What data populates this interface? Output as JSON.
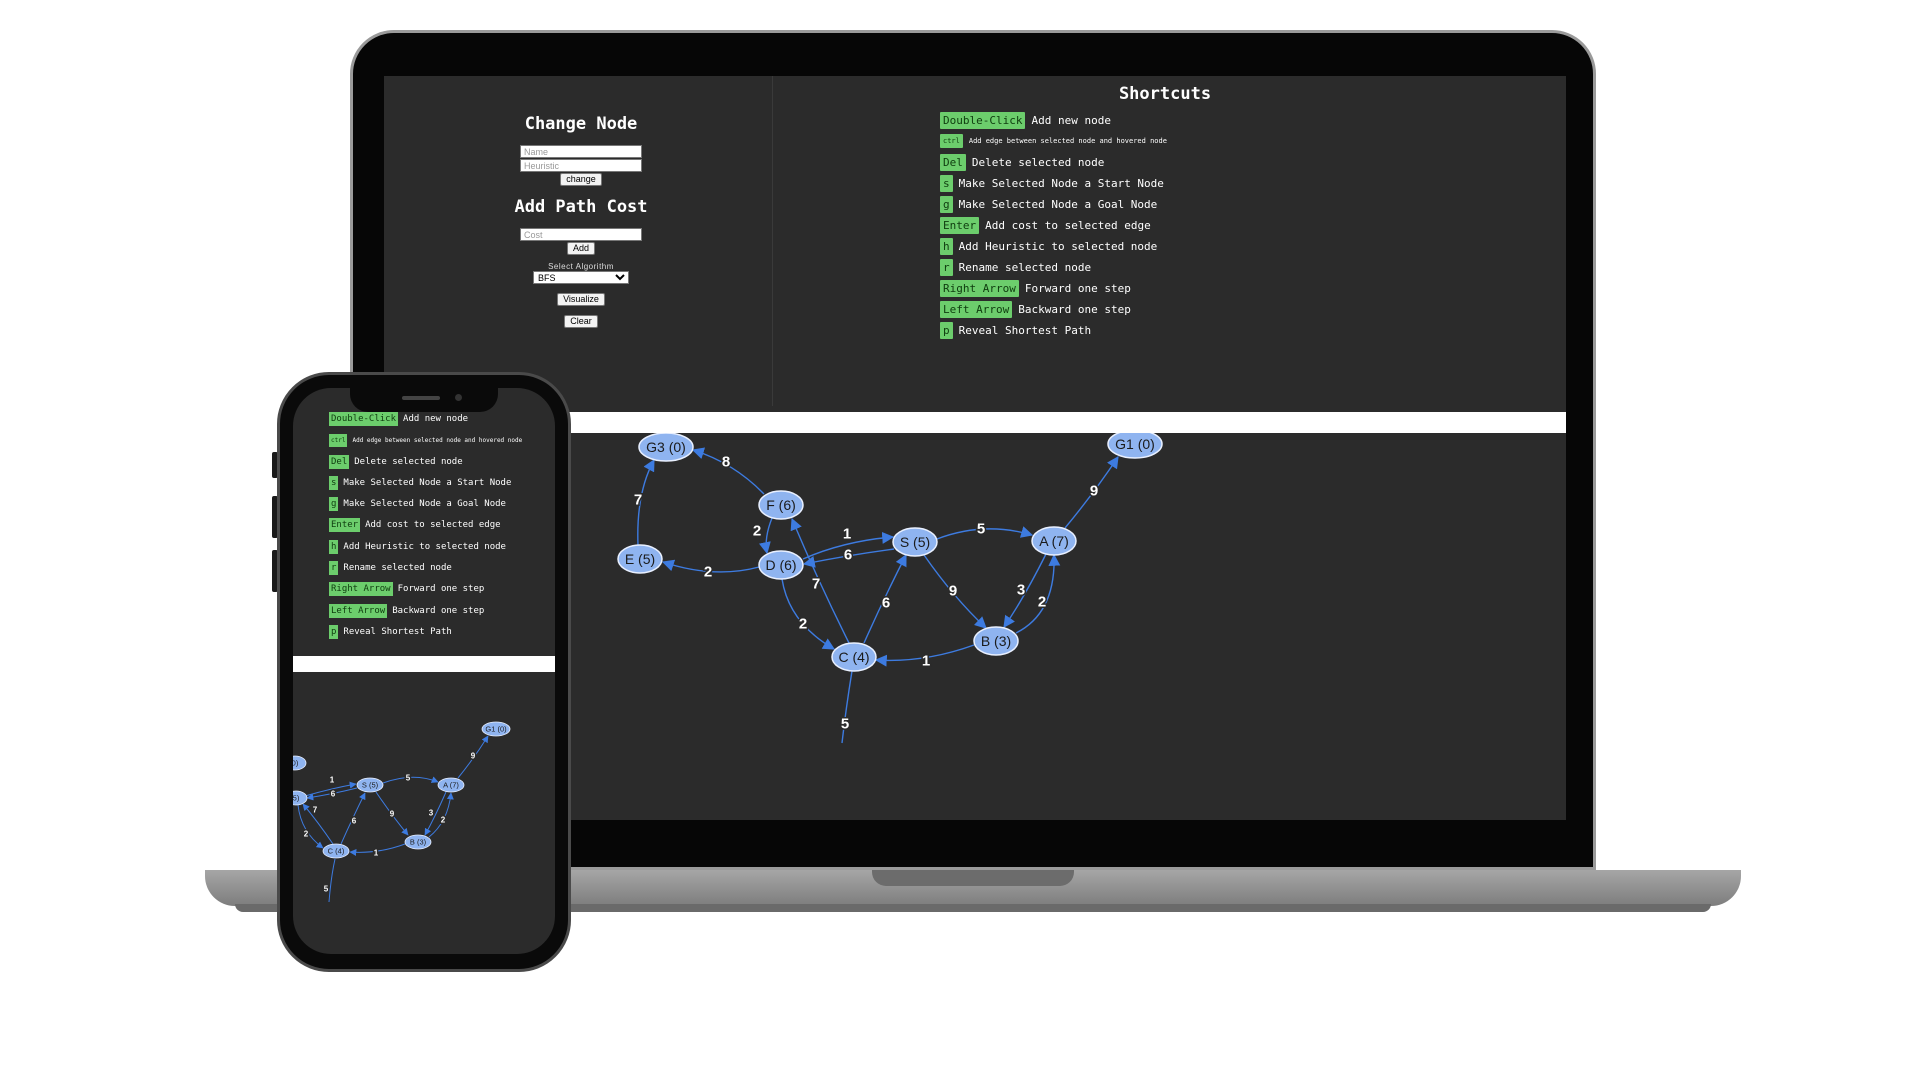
{
  "control_panel": {
    "change_node_title": "Change Node",
    "name_placeholder": "Name",
    "heuristic_placeholder": "Heuristic",
    "change_button": "change",
    "add_path_cost_title": "Add Path Cost",
    "cost_placeholder": "Cost",
    "add_button": "Add",
    "select_algorithm_label": "Select Algorithm",
    "algorithm_selected": "BFS",
    "visualize_button": "Visualize",
    "clear_button": "Clear"
  },
  "shortcuts": {
    "title": "Shortcuts",
    "items": [
      {
        "key": "Double-Click",
        "desc": "Add new node"
      },
      {
        "key": "ctrl",
        "desc": "Add edge between selected node and hovered node"
      },
      {
        "key": "Del",
        "desc": "Delete selected node"
      },
      {
        "key": "s",
        "desc": "Make Selected Node a Start Node"
      },
      {
        "key": "g",
        "desc": "Make Selected Node a Goal Node"
      },
      {
        "key": "Enter",
        "desc": "Add cost to selected edge"
      },
      {
        "key": "h",
        "desc": "Add Heuristic to selected node"
      },
      {
        "key": "r",
        "desc": "Rename selected node"
      },
      {
        "key": "Right Arrow",
        "desc": "Forward one step"
      },
      {
        "key": "Left Arrow",
        "desc": "Backward one step"
      },
      {
        "key": "p",
        "desc": "Reveal Shortest Path"
      }
    ]
  },
  "graph": {
    "nodes": {
      "G3": "G3 (0)",
      "G1": "G1 (0)",
      "F": "F (6)",
      "E": "E (5)",
      "D": "D (6)",
      "S": "S (5)",
      "A": "A (7)",
      "B": "B (3)",
      "C": "C (4)"
    },
    "edge_costs": {
      "F_G3": "8",
      "E_G3": "7",
      "F_D": "2",
      "D_E": "2",
      "D_S": "1",
      "S_D": "6",
      "C_F": "7",
      "D_C": "2",
      "C_S": "6",
      "S_A": "5",
      "S_B": "9",
      "A_B": "3",
      "B_A": "2",
      "B_C": "1",
      "A_G1": "9",
      "C_bottom": "5"
    },
    "phone_nodes": {
      "G1": "G1 (0)",
      "S": "S (5)",
      "A": "A (7)",
      "B": "B (3)",
      "C": "C (4)",
      "left1": "0)",
      "left2": "5)"
    }
  },
  "colors": {
    "background": "#2b2b2b",
    "node_fill": "#8fb4f0",
    "edge": "#3d7be0",
    "key_badge": "#6ccd6c"
  }
}
